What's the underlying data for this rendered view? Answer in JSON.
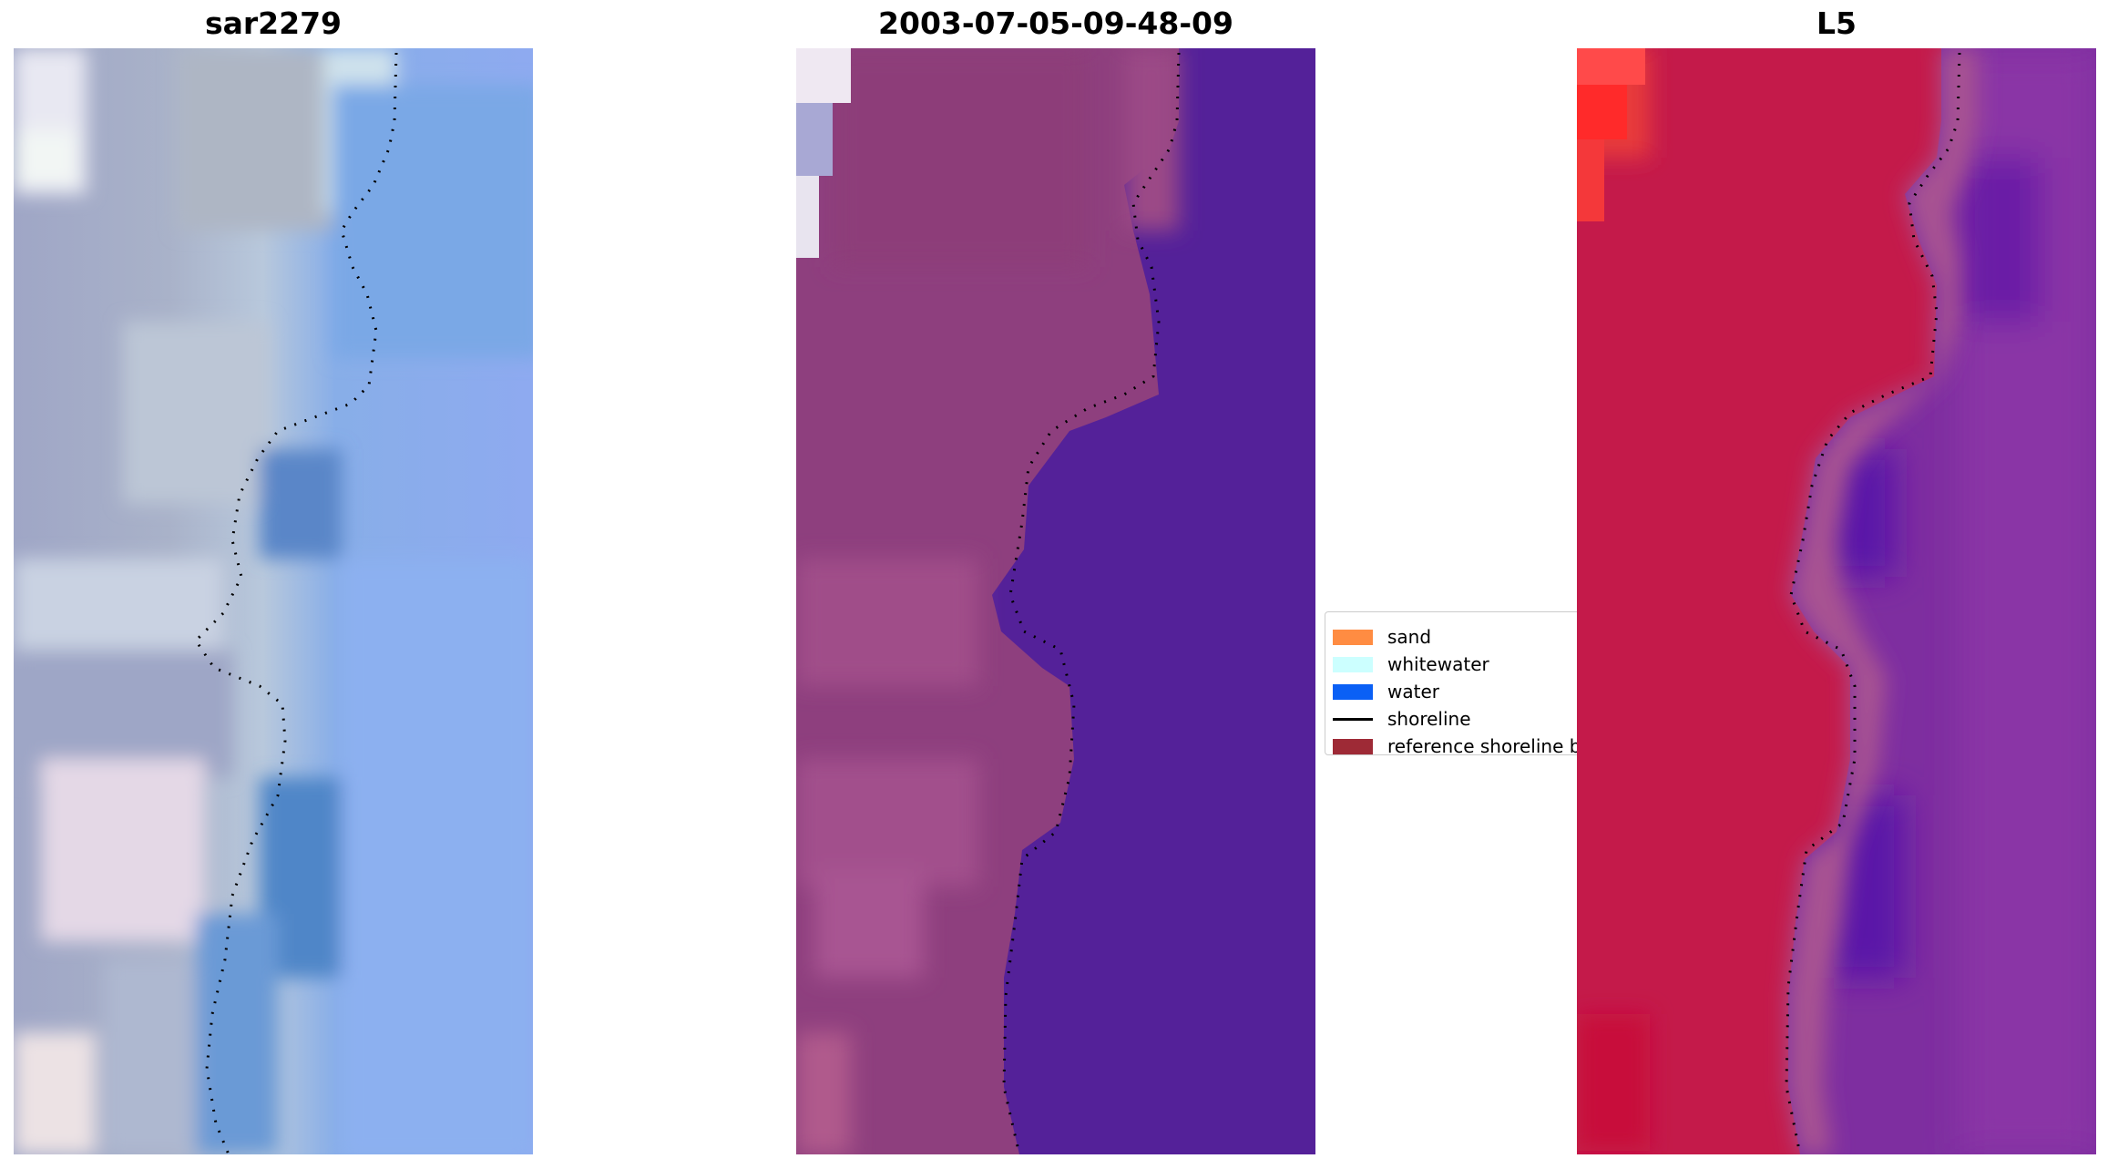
{
  "panels": [
    {
      "title": "sar2279"
    },
    {
      "title": "2003-07-05-09-48-09"
    },
    {
      "title": "L5"
    }
  ],
  "legend": {
    "items": [
      {
        "label": "sand",
        "color": "#ff8c42",
        "kind": "patch"
      },
      {
        "label": "whitewater",
        "color": "#ccffff",
        "kind": "patch"
      },
      {
        "label": "water",
        "color": "#0a60f5",
        "kind": "patch"
      },
      {
        "label": "shoreline",
        "color": "#000000",
        "kind": "line"
      },
      {
        "label": "reference shoreline buffer",
        "color": "#9e2a36",
        "kind": "patch"
      }
    ]
  }
}
